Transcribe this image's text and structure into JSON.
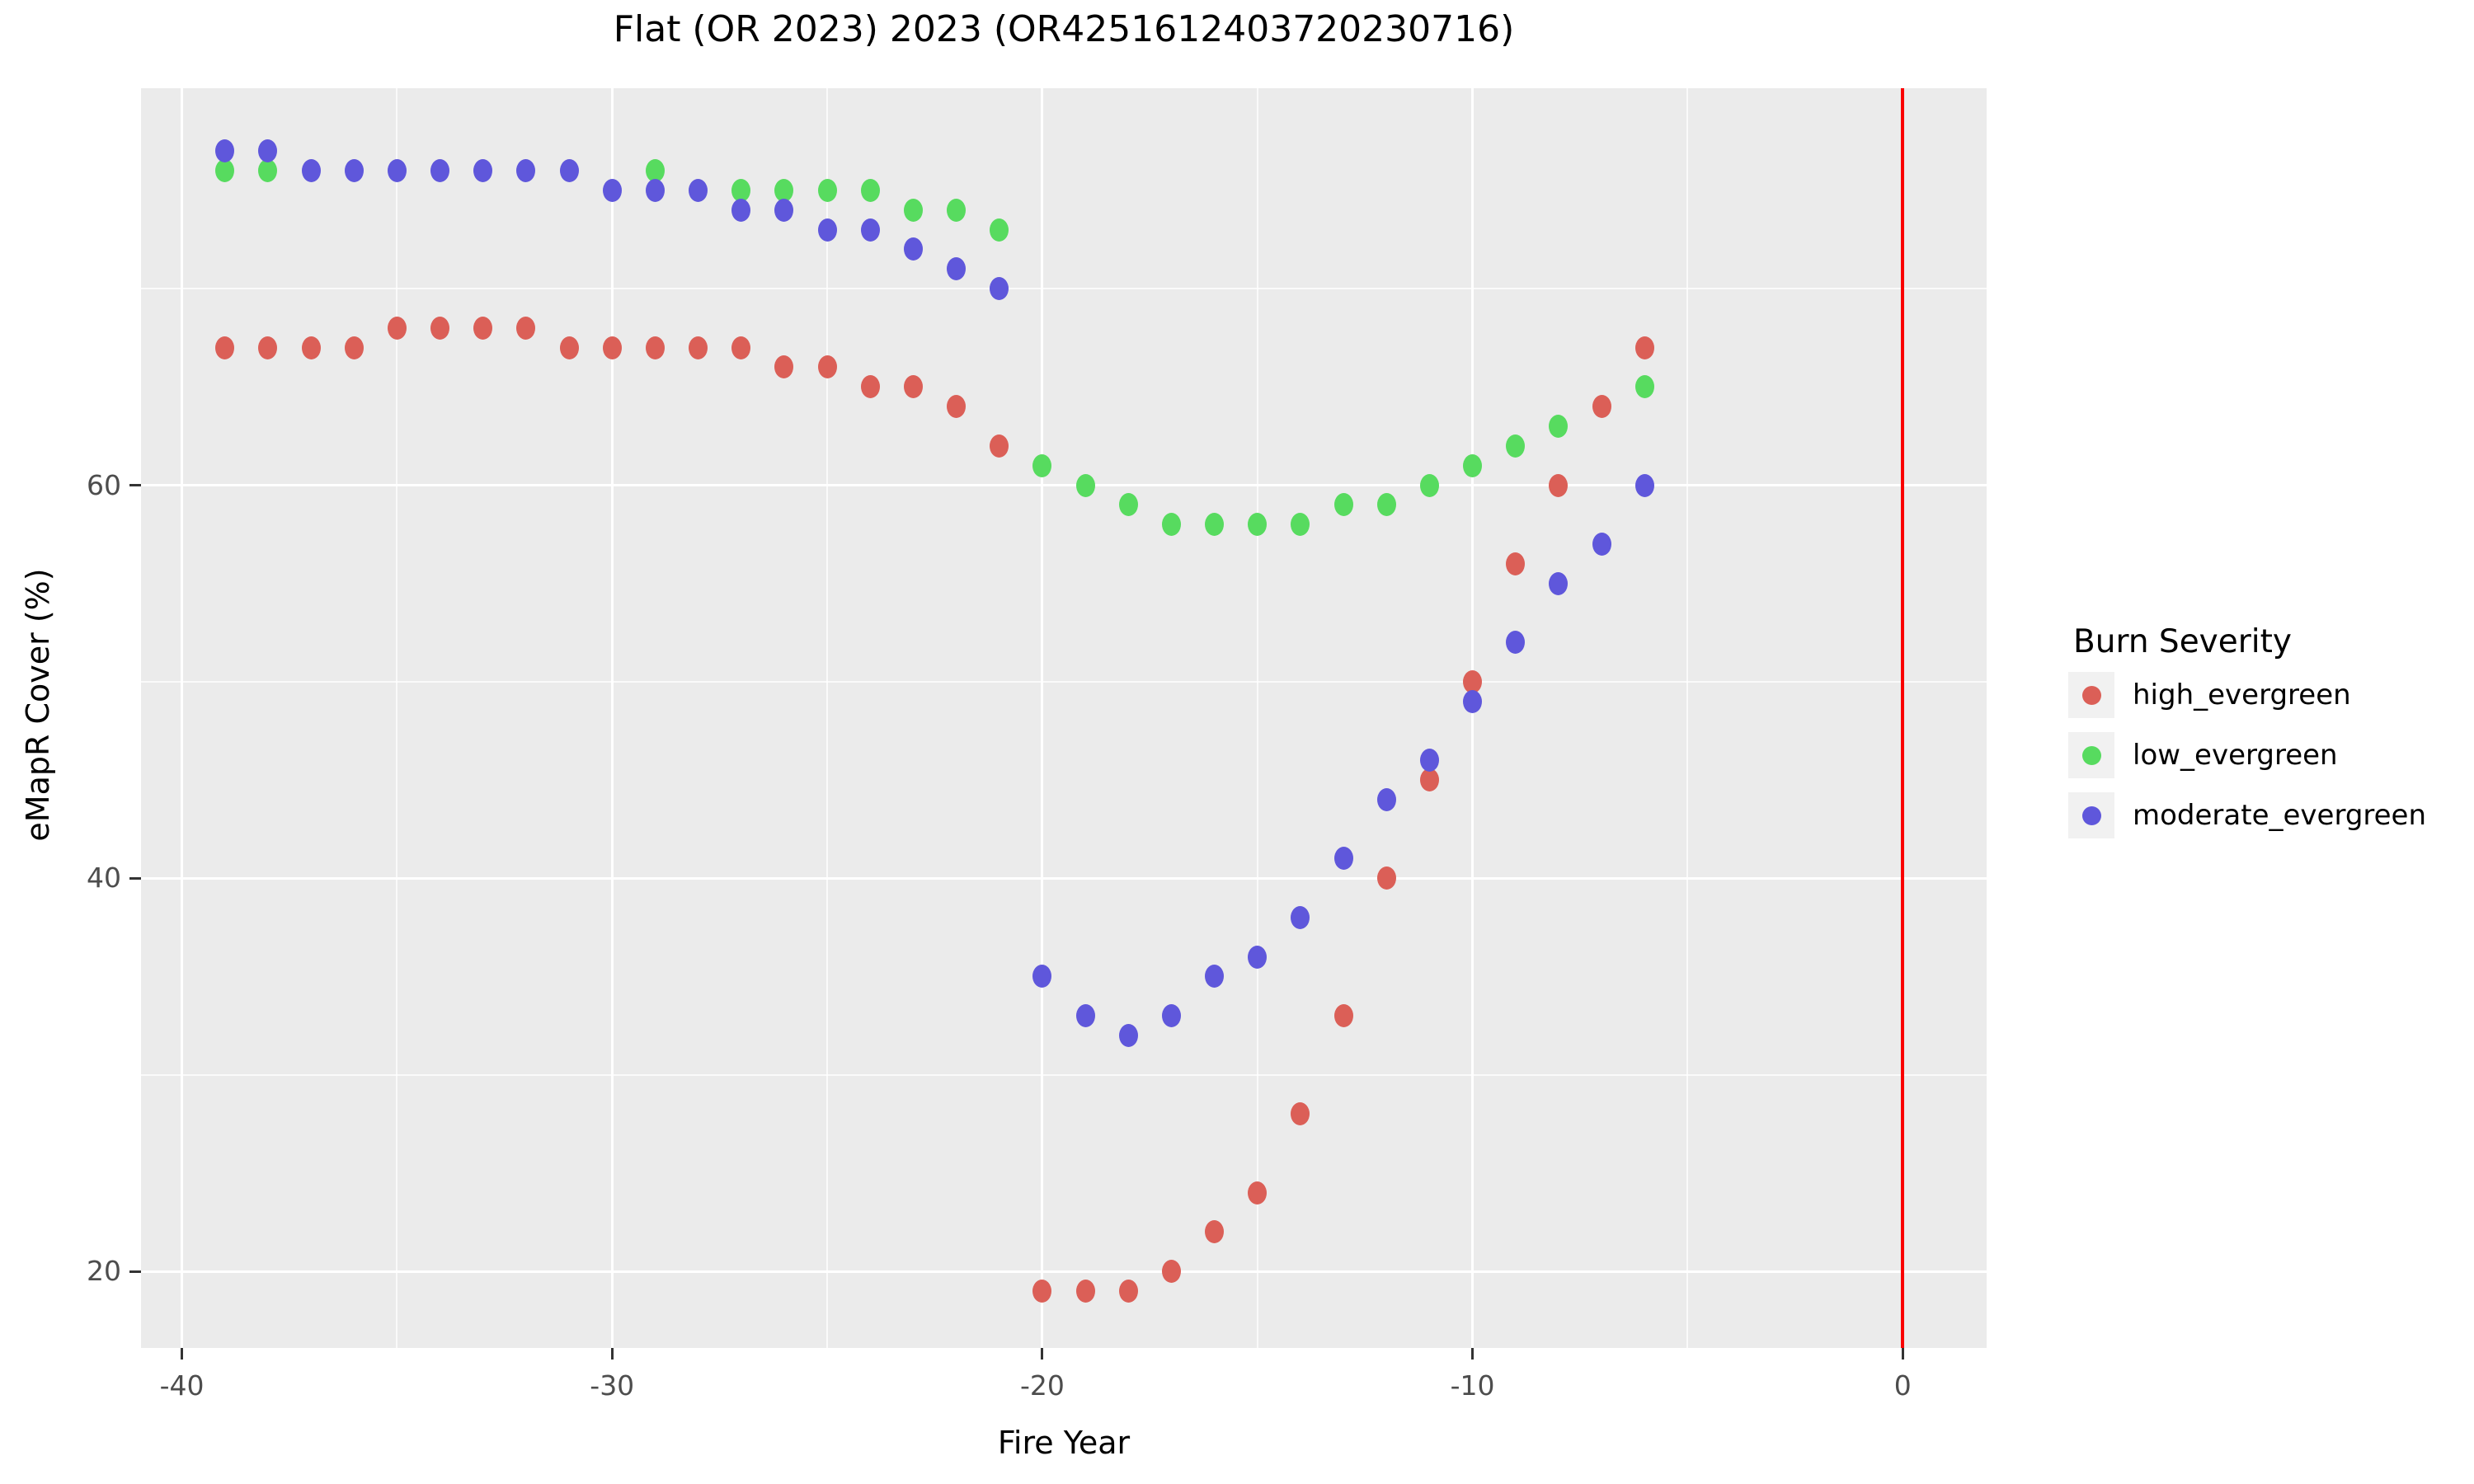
{
  "title": "Flat (OR 2023) 2023 (OR4251612403720230716)",
  "chart_data": {
    "type": "scatter",
    "title": "Flat (OR 2023) 2023 (OR4251612403720230716)",
    "xlabel": "Fire Year",
    "ylabel": "eMapR Cover (%)",
    "xlim": [
      -40.95,
      1.95
    ],
    "ylim": [
      16.1,
      80.2
    ],
    "x_major_ticks": [
      -40,
      -30,
      -20,
      -10,
      0
    ],
    "x_tick_labels": [
      "-40",
      "-30",
      "-20",
      "-10",
      "0"
    ],
    "x_minor_gridlines": [
      -35,
      -25,
      -15,
      -5
    ],
    "y_major_ticks": [
      20,
      40,
      60
    ],
    "y_tick_labels": [
      "20",
      "40",
      "60"
    ],
    "y_minor_gridlines": [
      30,
      50,
      70
    ],
    "grid": "on",
    "legend_position": "right",
    "legend_title": "Burn Severity",
    "vline": {
      "x": 0,
      "color": "#fa0000"
    },
    "series": [
      {
        "name": "high_evergreen",
        "color": "#db5f57",
        "points": [
          [
            -39,
            67
          ],
          [
            -38,
            67
          ],
          [
            -37,
            67
          ],
          [
            -36,
            67
          ],
          [
            -35,
            68
          ],
          [
            -34,
            68
          ],
          [
            -33,
            68
          ],
          [
            -32,
            68
          ],
          [
            -31,
            67
          ],
          [
            -30,
            67
          ],
          [
            -29,
            67
          ],
          [
            -28,
            67
          ],
          [
            -27,
            67
          ],
          [
            -26,
            66
          ],
          [
            -25,
            66
          ],
          [
            -24,
            65
          ],
          [
            -23,
            65
          ],
          [
            -22,
            64
          ],
          [
            -21,
            62
          ],
          [
            -20,
            19
          ],
          [
            -19,
            19
          ],
          [
            -18,
            19
          ],
          [
            -17,
            20
          ],
          [
            -16,
            22
          ],
          [
            -15,
            24
          ],
          [
            -14,
            28
          ],
          [
            -13,
            33
          ],
          [
            -12,
            40
          ],
          [
            -11,
            45
          ],
          [
            -10,
            50
          ],
          [
            -9,
            56
          ],
          [
            -8,
            60
          ],
          [
            -7,
            64
          ],
          [
            -6,
            67
          ]
        ]
      },
      {
        "name": "low_evergreen",
        "color": "#57db5f",
        "points": [
          [
            -39,
            76
          ],
          [
            -38,
            76
          ],
          [
            -29,
            76
          ],
          [
            -27,
            75
          ],
          [
            -26,
            75
          ],
          [
            -25,
            75
          ],
          [
            -24,
            75
          ],
          [
            -23,
            74
          ],
          [
            -22,
            74
          ],
          [
            -21,
            73
          ],
          [
            -20,
            61
          ],
          [
            -19,
            60
          ],
          [
            -18,
            59
          ],
          [
            -17,
            58
          ],
          [
            -16,
            58
          ],
          [
            -15,
            58
          ],
          [
            -14,
            58
          ],
          [
            -13,
            59
          ],
          [
            -12,
            59
          ],
          [
            -11,
            60
          ],
          [
            -10,
            61
          ],
          [
            -9,
            62
          ],
          [
            -8,
            63
          ],
          [
            -6,
            65
          ]
        ]
      },
      {
        "name": "moderate_evergreen",
        "color": "#5f57db",
        "points": [
          [
            -39,
            77
          ],
          [
            -38,
            77
          ],
          [
            -37,
            76
          ],
          [
            -36,
            76
          ],
          [
            -35,
            76
          ],
          [
            -34,
            76
          ],
          [
            -33,
            76
          ],
          [
            -32,
            76
          ],
          [
            -31,
            76
          ],
          [
            -30,
            75
          ],
          [
            -29,
            75
          ],
          [
            -28,
            75
          ],
          [
            -27,
            74
          ],
          [
            -26,
            74
          ],
          [
            -25,
            73
          ],
          [
            -24,
            73
          ],
          [
            -23,
            72
          ],
          [
            -22,
            71
          ],
          [
            -21,
            70
          ],
          [
            -20,
            35
          ],
          [
            -19,
            33
          ],
          [
            -18,
            32
          ],
          [
            -17,
            33
          ],
          [
            -16,
            35
          ],
          [
            -15,
            36
          ],
          [
            -14,
            38
          ],
          [
            -13,
            41
          ],
          [
            -12,
            44
          ],
          [
            -11,
            46
          ],
          [
            -10,
            49
          ],
          [
            -9,
            52
          ],
          [
            -8,
            55
          ],
          [
            -7,
            57
          ],
          [
            -6,
            60
          ]
        ]
      }
    ]
  },
  "colors": {
    "panel_bg": "#ebebeb",
    "grid": "#ffffff",
    "tick_label": "#4d4d4d",
    "axis_title": "#000000",
    "legend_key_bg": "#f1f1f1"
  }
}
